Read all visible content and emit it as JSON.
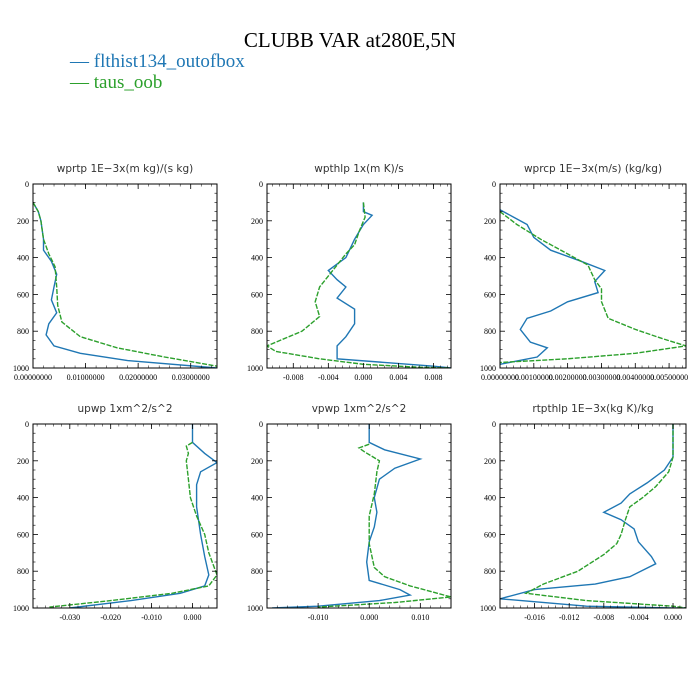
{
  "title": "CLUBB VAR at280E,5N",
  "legend": [
    {
      "label": "— flthist134_outofbox",
      "color": "#1f77b4"
    },
    {
      "label": "— taus_oob",
      "color": "#2ca02c"
    }
  ],
  "chart_data": [
    {
      "type": "line",
      "title": "wprtp  1E−3x(m kg)/(s kg)",
      "xlim": [
        0,
        0.035
      ],
      "ylim": [
        1000,
        0
      ],
      "xticks": [
        0,
        0.01,
        0.02,
        0.03
      ],
      "xtick_labels": [
        "0.00000000",
        "0.01000000",
        "0.02000000",
        "0.03000000"
      ],
      "yticks": [
        0,
        200,
        400,
        600,
        800,
        1000
      ],
      "ytick_labels": [
        "0",
        "200",
        "400",
        "600",
        "800",
        "1000"
      ],
      "series": [
        {
          "name": "flthist134_outofbox",
          "x": [
            0,
            0.001,
            0.0015,
            0.002,
            0.002,
            0.0035,
            0.0045,
            0.004,
            0.0035,
            0.0045,
            0.003,
            0.0025,
            0.004,
            0.009,
            0.018,
            0.035
          ],
          "y": [
            100,
            150,
            200,
            300,
            360,
            420,
            490,
            560,
            630,
            700,
            760,
            820,
            880,
            920,
            960,
            1000
          ]
        },
        {
          "name": "taus_oob",
          "x": [
            0,
            0.001,
            0.0015,
            0.002,
            0.003,
            0.0042,
            0.0045,
            0.0047,
            0.0055,
            0.009,
            0.016,
            0.025,
            0.035
          ],
          "y": [
            100,
            150,
            200,
            300,
            380,
            450,
            560,
            660,
            750,
            830,
            890,
            940,
            990
          ]
        }
      ]
    },
    {
      "type": "line",
      "title": "wpthlp  1x(m K)/s",
      "xlim": [
        -0.011,
        0.01
      ],
      "ylim": [
        1000,
        0
      ],
      "xticks": [
        -0.008,
        -0.004,
        0,
        0.004,
        0.008
      ],
      "xtick_labels": [
        "-0.008",
        "-0.004",
        "0.000",
        "0.004",
        "0.008"
      ],
      "yticks": [
        0,
        200,
        400,
        600,
        800,
        1000
      ],
      "ytick_labels": [
        "0",
        "200",
        "400",
        "600",
        "800",
        "1000"
      ],
      "series": [
        {
          "name": "flthist134_outofbox",
          "x": [
            0,
            0,
            0.001,
            0,
            -0.001,
            -0.002,
            -0.004,
            -0.003,
            -0.002,
            -0.003,
            -0.001,
            -0.001,
            -0.002,
            -0.003,
            -0.003,
            0.008,
            0.01
          ],
          "y": [
            100,
            150,
            170,
            220,
            300,
            400,
            470,
            520,
            560,
            620,
            680,
            760,
            830,
            880,
            950,
            990,
            1000
          ]
        },
        {
          "name": "taus_oob",
          "x": [
            0,
            0.0002,
            -0.0005,
            -0.001,
            -0.002,
            -0.003,
            -0.005,
            -0.0055,
            -0.005,
            -0.007,
            -0.011,
            -0.01,
            -0.005,
            0,
            0.006,
            0.01
          ],
          "y": [
            100,
            180,
            260,
            330,
            380,
            440,
            560,
            640,
            720,
            800,
            880,
            910,
            950,
            980,
            995,
            1000
          ]
        }
      ]
    },
    {
      "type": "line",
      "title": "wprcp  1E−3x(m/s) (kg/kg)",
      "xlim": [
        0,
        0.0055
      ],
      "ylim": [
        1000,
        0
      ],
      "xticks": [
        0,
        0.001,
        0.002,
        0.003,
        0.004,
        0.005
      ],
      "xtick_labels": [
        "0.00000000",
        "0.00100000",
        "0.00200000",
        "0.00300000",
        "0.00400000",
        "0.00500000"
      ],
      "yticks": [
        0,
        200,
        400,
        600,
        800,
        1000
      ],
      "ytick_labels": [
        "0",
        "200",
        "400",
        "600",
        "800",
        "1000"
      ],
      "series": [
        {
          "name": "flthist134_outofbox",
          "x": [
            0,
            0.0004,
            0.0008,
            0.001,
            0.0015,
            0.0024,
            0.0031,
            0.0028,
            0.0029,
            0.002,
            0.0015,
            0.0008,
            0.0006,
            0.0009,
            0.0014,
            0.0011,
            0
          ],
          "y": [
            140,
            180,
            220,
            290,
            360,
            420,
            470,
            530,
            590,
            640,
            690,
            730,
            790,
            860,
            890,
            940,
            980
          ]
        },
        {
          "name": "taus_oob",
          "x": [
            0,
            0.0005,
            0.0012,
            0.002,
            0.0026,
            0.0028,
            0.003,
            0.003,
            0.0032,
            0.004,
            0.0048,
            0.0055,
            0.004,
            0.002,
            0
          ],
          "y": [
            150,
            220,
            300,
            380,
            440,
            520,
            570,
            640,
            730,
            790,
            840,
            880,
            920,
            950,
            970
          ]
        }
      ]
    },
    {
      "type": "line",
      "title": "upwp  1xm^2/s^2",
      "xlim": [
        -0.039,
        0.006
      ],
      "ylim": [
        1000,
        0
      ],
      "xticks": [
        -0.03,
        -0.02,
        -0.01,
        0
      ],
      "xtick_labels": [
        "-0.030",
        "-0.020",
        "-0.010",
        "0.000"
      ],
      "yticks": [
        0,
        200,
        400,
        600,
        800,
        1000
      ],
      "ytick_labels": [
        "0",
        "200",
        "400",
        "600",
        "800",
        "1000"
      ],
      "series": [
        {
          "name": "flthist134_outofbox",
          "x": [
            0,
            0,
            0.003,
            0.006,
            0.002,
            0.001,
            0.001,
            0.002,
            0.003,
            0.004,
            0.003,
            -0.003,
            -0.015,
            -0.03
          ],
          "y": [
            0,
            100,
            160,
            210,
            260,
            330,
            450,
            600,
            720,
            820,
            880,
            920,
            960,
            1000
          ]
        },
        {
          "name": "taus_oob",
          "x": [
            0,
            -0.0015,
            -0.001,
            -0.0015,
            -0.001,
            -0.0005,
            0.001,
            0.003,
            0.004,
            0.006,
            0.004,
            -0.005,
            -0.02,
            -0.035
          ],
          "y": [
            100,
            120,
            160,
            200,
            300,
            400,
            500,
            600,
            700,
            820,
            880,
            920,
            960,
            995
          ]
        }
      ]
    },
    {
      "type": "line",
      "title": "vpwp  1xm^2/s^2",
      "xlim": [
        -0.02,
        0.016
      ],
      "ylim": [
        1000,
        0
      ],
      "xticks": [
        -0.01,
        0,
        0.01
      ],
      "xtick_labels": [
        "-0.010",
        "0.000",
        "0.010"
      ],
      "yticks": [
        0,
        200,
        400,
        600,
        800,
        1000
      ],
      "ytick_labels": [
        "0",
        "200",
        "400",
        "600",
        "800",
        "1000"
      ],
      "series": [
        {
          "name": "flthist134_outofbox",
          "x": [
            0,
            0,
            0.003,
            0.01,
            0.005,
            0.002,
            0.001,
            0.0015,
            0.001,
            0,
            -0.0005,
            0,
            0.006,
            0.008,
            0.002,
            -0.01,
            -0.019
          ],
          "y": [
            0,
            100,
            140,
            190,
            240,
            300,
            400,
            480,
            560,
            640,
            750,
            850,
            900,
            930,
            960,
            990,
            1000
          ]
        },
        {
          "name": "taus_oob",
          "x": [
            0,
            -0.002,
            -0.001,
            0.002,
            0.0015,
            0.001,
            0,
            0,
            0.001,
            0.003,
            0.008,
            0.012,
            0.016,
            0.005,
            -0.01
          ],
          "y": [
            110,
            130,
            150,
            200,
            260,
            380,
            500,
            650,
            780,
            830,
            880,
            910,
            940,
            970,
            995
          ]
        }
      ]
    },
    {
      "type": "line",
      "title": "rtpthlp  1E−3x(kg K)/kg",
      "xlim": [
        -0.02,
        0.0015
      ],
      "ylim": [
        1000,
        0
      ],
      "xticks": [
        -0.016,
        -0.012,
        -0.008,
        -0.004,
        0
      ],
      "xtick_labels": [
        "-0.016",
        "-0.012",
        "-0.008",
        "-0.004",
        "0.000"
      ],
      "yticks": [
        0,
        200,
        400,
        600,
        800,
        1000
      ],
      "ytick_labels": [
        "0",
        "200",
        "400",
        "600",
        "800",
        "1000"
      ],
      "series": [
        {
          "name": "flthist134_outofbox",
          "x": [
            0,
            0,
            -0.001,
            -0.003,
            -0.005,
            -0.006,
            -0.008,
            -0.006,
            -0.0045,
            -0.004,
            -0.0025,
            -0.002,
            -0.005,
            -0.009,
            -0.016,
            -0.02,
            -0.01,
            0,
            0.0015
          ],
          "y": [
            0,
            180,
            250,
            320,
            380,
            430,
            480,
            520,
            570,
            640,
            720,
            760,
            830,
            870,
            900,
            950,
            990,
            1000,
            1000
          ]
        },
        {
          "name": "taus_oob",
          "x": [
            0,
            0,
            -0.0005,
            -0.002,
            -0.0035,
            -0.005,
            -0.0055,
            -0.006,
            -0.0065,
            -0.008,
            -0.011,
            -0.015,
            -0.017,
            -0.01,
            0,
            0.0015
          ],
          "y": [
            0,
            180,
            260,
            340,
            400,
            450,
            520,
            600,
            650,
            710,
            800,
            870,
            920,
            960,
            990,
            1000
          ]
        }
      ]
    }
  ]
}
